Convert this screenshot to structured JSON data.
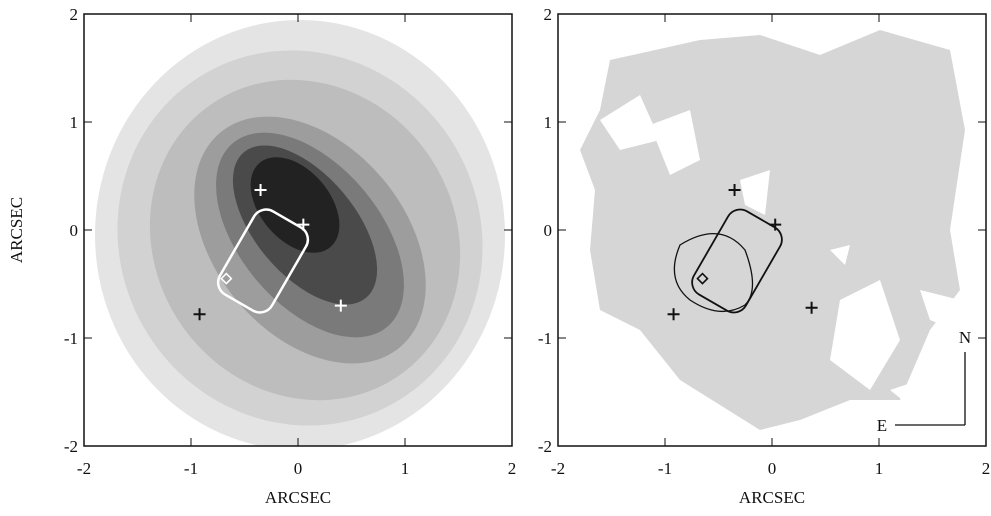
{
  "chart_data": [
    {
      "type": "scatter",
      "x_label": "ARCSEC",
      "y_label": "ARCSEC",
      "xlim": [
        -2,
        2
      ],
      "ylim": [
        -2,
        2
      ],
      "xticks": [
        -2,
        -1,
        0,
        1,
        2
      ],
      "yticks": [
        -2,
        -1,
        0,
        1,
        2
      ],
      "series": [
        {
          "marker": "plus",
          "color": "#ffffff",
          "x": [
            -0.35,
            0.05,
            0.4
          ],
          "values": [
            0.37,
            0.05,
            -0.7
          ]
        },
        {
          "marker": "plus",
          "color": "#111111",
          "x": [
            -0.92
          ],
          "values": [
            -0.78
          ]
        },
        {
          "marker": "diamond",
          "color": "#ffffff",
          "x": [
            -0.67
          ],
          "values": [
            -0.45
          ]
        }
      ]
    },
    {
      "type": "scatter",
      "x_label": "ARCSEC",
      "xlim": [
        -2,
        2
      ],
      "ylim": [
        -2,
        2
      ],
      "xticks": [
        -2,
        -1,
        0,
        1,
        2
      ],
      "yticks": [
        -2,
        -1,
        0,
        1,
        2
      ],
      "series": [
        {
          "marker": "plus",
          "color": "#111111",
          "x": [
            -0.35,
            0.03,
            0.37,
            -0.92
          ],
          "values": [
            0.37,
            0.05,
            -0.72,
            -0.78
          ]
        },
        {
          "marker": "diamond",
          "color": "#111111",
          "x": [
            -0.65
          ],
          "values": [
            -0.45
          ]
        }
      ],
      "compass": [
        "N",
        "E"
      ]
    }
  ]
}
